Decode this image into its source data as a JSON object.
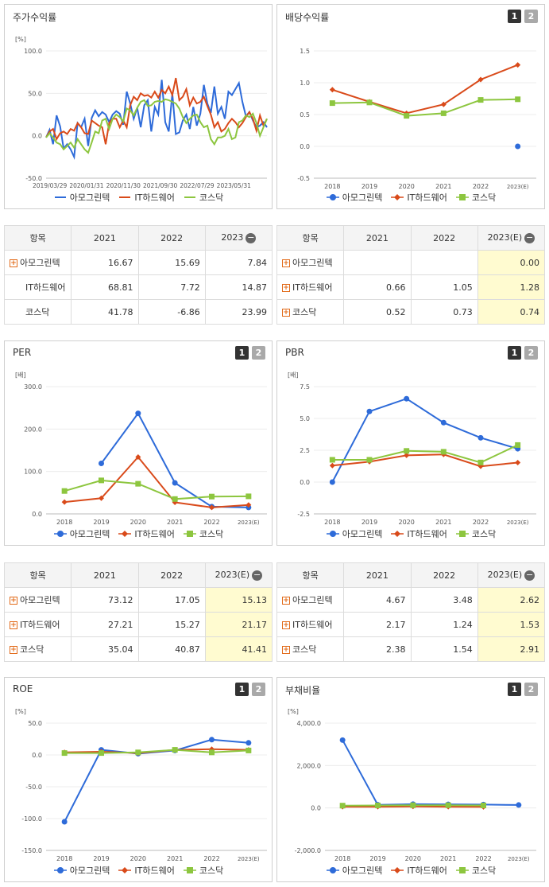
{
  "colors": {
    "s0": "#2e6bd9",
    "s1": "#d94a1a",
    "s2": "#8dc63f"
  },
  "series_names": [
    "아모그린텍",
    "IT하드웨어",
    "코스닥"
  ],
  "page_buttons": [
    "1",
    "2"
  ],
  "minus_icon": "−",
  "plus_icon": "+",
  "charts": {
    "stock": {
      "title": "주가수익률",
      "unit": "[%]",
      "chart_data": {
        "type": "line",
        "x_ticks": [
          "2019/03/29",
          "2020/01/31",
          "2020/11/30",
          "2021/09/30",
          "2022/07/29",
          "2023/05/31"
        ],
        "y_ticks": [
          "100.0",
          "50.0",
          "0.0",
          "-50.0"
        ],
        "ylim": [
          -50,
          100
        ],
        "series": [
          {
            "name": "아모그린텍",
            "values": [
              -2,
              7,
              -10,
              24,
              11,
              -15,
              -10,
              -16,
              -25,
              15,
              10,
              20,
              -12,
              21,
              30,
              23,
              28,
              25,
              16,
              25,
              29,
              26,
              13,
              52,
              38,
              20,
              33,
              10,
              36,
              42,
              5,
              34,
              25,
              66,
              16,
              5,
              50,
              2,
              4,
              18,
              25,
              8,
              34,
              12,
              26,
              60,
              38,
              27,
              58,
              26,
              34,
              20,
              52,
              48,
              55,
              62,
              40,
              23,
              28,
              18,
              10,
              12,
              16,
              10
            ]
          },
          {
            "name": "IT하드웨어",
            "values": [
              -2,
              5,
              8,
              -4,
              3,
              5,
              2,
              8,
              6,
              15,
              10,
              3,
              2,
              18,
              15,
              12,
              10,
              -10,
              15,
              20,
              20,
              10,
              18,
              10,
              36,
              46,
              42,
              50,
              47,
              48,
              45,
              52,
              45,
              54,
              50,
              58,
              48,
              68,
              42,
              46,
              55,
              36,
              45,
              38,
              40,
              46,
              35,
              25,
              10,
              16,
              5,
              8,
              15,
              20,
              16,
              10,
              15,
              22,
              28,
              20,
              6,
              24,
              12,
              20
            ]
          },
          {
            "name": "코스닥",
            "values": [
              -2,
              3,
              -2,
              -8,
              -10,
              -16,
              -12,
              -8,
              -14,
              -4,
              -10,
              -16,
              -20,
              -8,
              5,
              3,
              18,
              20,
              8,
              20,
              25,
              22,
              17,
              32,
              30,
              24,
              33,
              40,
              42,
              35,
              36,
              40,
              41,
              40,
              43,
              42,
              40,
              38,
              32,
              22,
              15,
              20,
              24,
              25,
              16,
              10,
              12,
              -4,
              -10,
              -2,
              -2,
              0,
              8,
              -4,
              -2,
              16,
              18,
              24,
              22,
              26,
              15,
              0,
              10,
              20
            ]
          }
        ]
      }
    },
    "dividend": {
      "title": "배당수익률",
      "chart_data": {
        "type": "line",
        "categories": [
          "2018",
          "2019",
          "2020",
          "2021",
          "2022",
          "2023(E)"
        ],
        "y_ticks": [
          "1.5",
          "1.0",
          "0.5",
          "0.0",
          "-0.5"
        ],
        "ylim": [
          -0.5,
          1.5
        ],
        "series": [
          {
            "name": "아모그린텍",
            "values": [
              null,
              null,
              null,
              null,
              null,
              0.0
            ]
          },
          {
            "name": "IT하드웨어",
            "values": [
              0.89,
              0.7,
              0.52,
              0.66,
              1.05,
              1.28
            ]
          },
          {
            "name": "코스닥",
            "values": [
              0.68,
              0.69,
              0.48,
              0.52,
              0.73,
              0.74
            ]
          }
        ]
      }
    },
    "per": {
      "title": "PER",
      "unit": "[배]",
      "chart_data": {
        "type": "line",
        "categories": [
          "2018",
          "2019",
          "2020",
          "2021",
          "2022",
          "2023(E)"
        ],
        "y_ticks": [
          "300.0",
          "200.0",
          "100.0",
          "0.0"
        ],
        "ylim": [
          0,
          300
        ],
        "series": [
          {
            "name": "아모그린텍",
            "values": [
              null,
              119,
              237,
              73.12,
              17.05,
              15.13
            ]
          },
          {
            "name": "IT하드웨어",
            "values": [
              28,
              37,
              134,
              27.21,
              15.27,
              21.17
            ]
          },
          {
            "name": "코스닥",
            "values": [
              54,
              79,
              71,
              35.04,
              40.87,
              41.41
            ]
          }
        ]
      }
    },
    "pbr": {
      "title": "PBR",
      "unit": "[배]",
      "chart_data": {
        "type": "line",
        "categories": [
          "2018",
          "2019",
          "2020",
          "2021",
          "2022",
          "2023(E)"
        ],
        "y_ticks": [
          "7.5",
          "5.0",
          "2.5",
          "0.0",
          "-2.5"
        ],
        "ylim": [
          -2.5,
          7.5
        ],
        "series": [
          {
            "name": "아모그린텍",
            "values": [
              0.0,
              5.55,
              6.55,
              4.67,
              3.48,
              2.62
            ]
          },
          {
            "name": "IT하드웨어",
            "values": [
              1.3,
              1.6,
              2.1,
              2.17,
              1.24,
              1.53
            ]
          },
          {
            "name": "코스닥",
            "values": [
              1.75,
              1.75,
              2.45,
              2.38,
              1.54,
              2.91
            ]
          }
        ]
      }
    },
    "roe": {
      "title": "ROE",
      "unit": "[%]",
      "chart_data": {
        "type": "line",
        "categories": [
          "2018",
          "2019",
          "2020",
          "2021",
          "2022",
          "2023(E)"
        ],
        "y_ticks": [
          "50.0",
          "0.0",
          "-50.0",
          "-100.0",
          "-150.0"
        ],
        "ylim": [
          -150,
          50
        ],
        "series": [
          {
            "name": "아모그린텍",
            "values": [
              -105,
              8,
              2,
              7,
              24,
              19
            ]
          },
          {
            "name": "IT하드웨어",
            "values": [
              4,
              5,
              3,
              8,
              9,
              8
            ]
          },
          {
            "name": "코스닥",
            "values": [
              3,
              3,
              4,
              8,
              4,
              7
            ]
          }
        ]
      }
    },
    "debt": {
      "title": "부채비율",
      "unit": "[%]",
      "chart_data": {
        "type": "line",
        "categories": [
          "2018",
          "2019",
          "2020",
          "2021",
          "2022",
          "2023(E)"
        ],
        "y_ticks": [
          "4,000.0",
          "2,000.0",
          "0.0",
          "-2,000.0"
        ],
        "ylim": [
          -2000,
          4000
        ],
        "series": [
          {
            "name": "아모그린텍",
            "values": [
              3200,
              150,
              180,
              170,
              160,
              140
            ]
          },
          {
            "name": "IT하드웨어",
            "values": [
              60,
              60,
              70,
              60,
              50,
              null
            ]
          },
          {
            "name": "코스닥",
            "values": [
              110,
              120,
              130,
              130,
              120,
              null
            ]
          }
        ]
      }
    }
  },
  "tables": {
    "stock": {
      "header": [
        "항목",
        "2021",
        "2022",
        "2023"
      ],
      "plus": [
        true,
        false,
        false
      ],
      "rows": [
        [
          "아모그린텍",
          "16.67",
          "15.69",
          "7.84"
        ],
        [
          "IT하드웨어",
          "68.81",
          "7.72",
          "14.87"
        ],
        [
          "코스닥",
          "41.78",
          "-6.86",
          "23.99"
        ]
      ]
    },
    "dividend": {
      "header": [
        "항목",
        "2021",
        "2022",
        "2023(E)"
      ],
      "plus": [
        true,
        true,
        true
      ],
      "rows": [
        [
          "아모그린텍",
          "",
          "",
          "0.00"
        ],
        [
          "IT하드웨어",
          "0.66",
          "1.05",
          "1.28"
        ],
        [
          "코스닥",
          "0.52",
          "0.73",
          "0.74"
        ]
      ]
    },
    "per": {
      "header": [
        "항목",
        "2021",
        "2022",
        "2023(E)"
      ],
      "plus": [
        true,
        true,
        true
      ],
      "rows": [
        [
          "아모그린텍",
          "73.12",
          "17.05",
          "15.13"
        ],
        [
          "IT하드웨어",
          "27.21",
          "15.27",
          "21.17"
        ],
        [
          "코스닥",
          "35.04",
          "40.87",
          "41.41"
        ]
      ]
    },
    "pbr": {
      "header": [
        "항목",
        "2021",
        "2022",
        "2023(E)"
      ],
      "plus": [
        true,
        true,
        true
      ],
      "rows": [
        [
          "아모그린텍",
          "4.67",
          "3.48",
          "2.62"
        ],
        [
          "IT하드웨어",
          "2.17",
          "1.24",
          "1.53"
        ],
        [
          "코스닥",
          "2.38",
          "1.54",
          "2.91"
        ]
      ]
    }
  }
}
